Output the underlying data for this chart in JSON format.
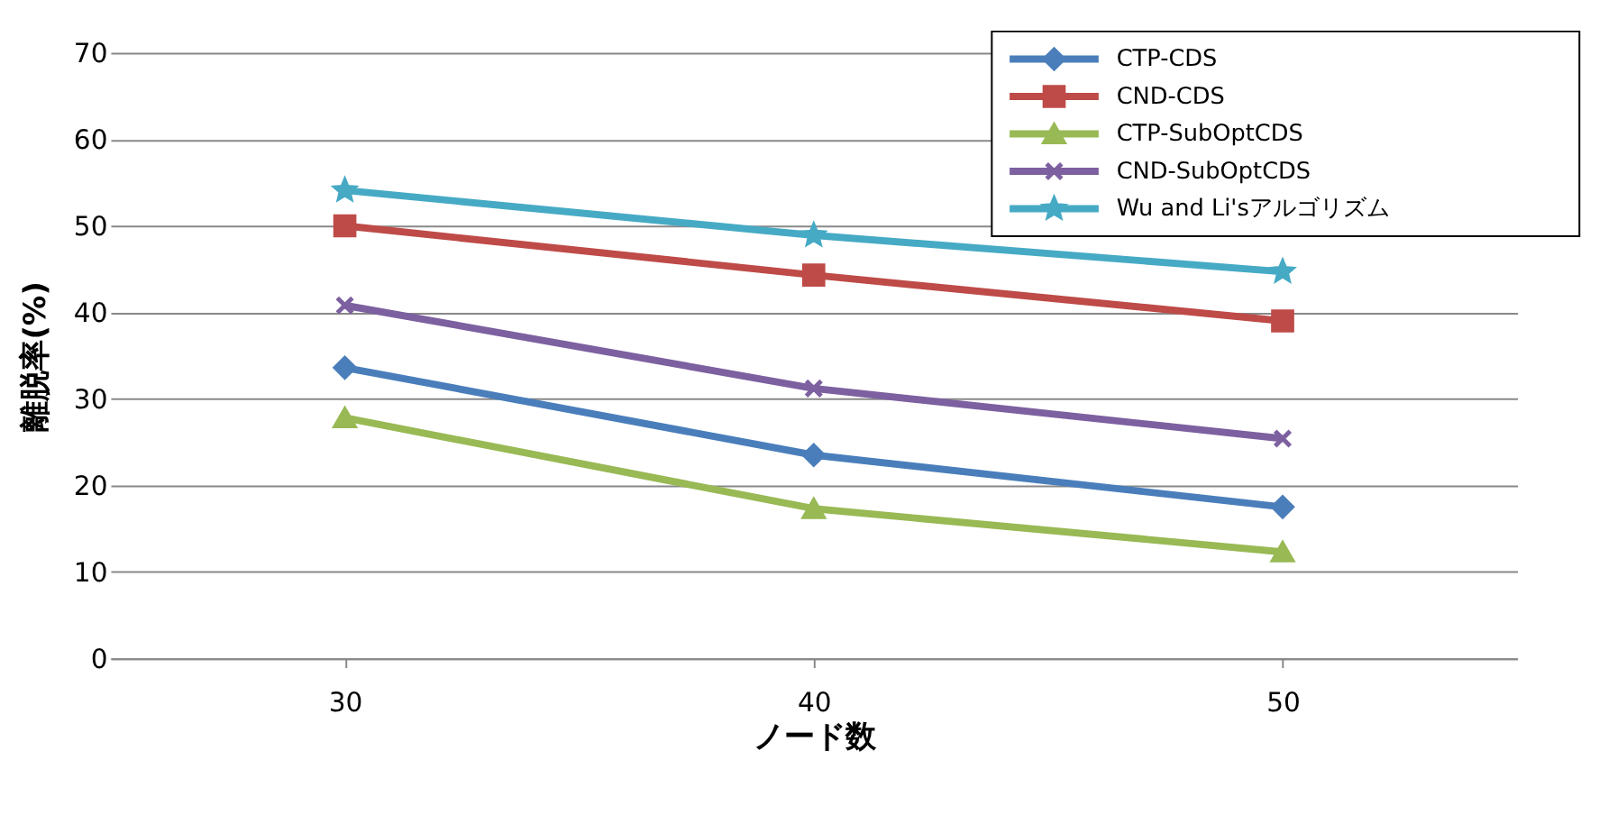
{
  "chart_data": {
    "type": "line",
    "xlabel": "ノード数",
    "ylabel": "離脱率(%)",
    "categories": [
      "30",
      "40",
      "50"
    ],
    "series": [
      {
        "name": "CTP-CDS",
        "color": "#4a7ebb",
        "marker": "diamond",
        "values": [
          33.6,
          23.5,
          17.5
        ]
      },
      {
        "name": "CND-CDS",
        "color": "#be4b48",
        "marker": "square",
        "values": [
          50.0,
          44.3,
          39.0
        ]
      },
      {
        "name": "CTP-SubOptCDS",
        "color": "#98b954",
        "marker": "triangle",
        "values": [
          27.8,
          17.3,
          12.3
        ]
      },
      {
        "name": "CND-SubOptCDS",
        "color": "#7d60a0",
        "marker": "cross",
        "values": [
          40.8,
          31.2,
          25.4
        ]
      },
      {
        "name": "Wu and Li'sアルゴリズム",
        "color": "#46aac5",
        "marker": "star",
        "values": [
          54.1,
          48.9,
          44.7
        ]
      }
    ],
    "ylim": [
      0,
      70
    ],
    "yticks": [
      0,
      10,
      20,
      30,
      40,
      50,
      60,
      70
    ],
    "grid": "y",
    "legend": "top right"
  }
}
